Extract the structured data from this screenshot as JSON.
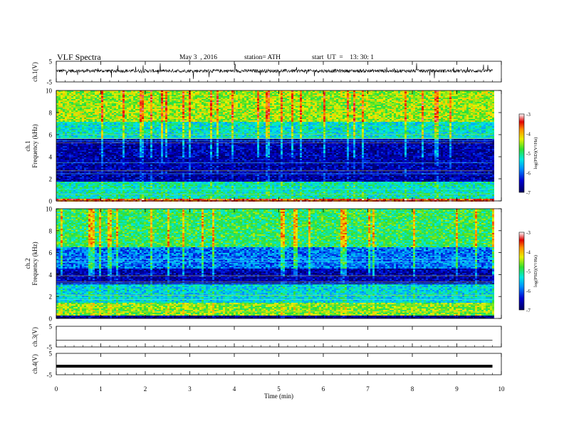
{
  "header": {
    "title": "VLF  Spectra",
    "date": "May 3  , 2016",
    "station": "station= ATH",
    "start": "start  UT  =    13: 30: 1"
  },
  "chart_data": [
    {
      "type": "line",
      "panel": "ch1-waveform",
      "ylabel": "ch.1(V)",
      "ylim": [
        -5,
        5
      ],
      "yticks": [
        "5",
        "-5"
      ],
      "xlim": [
        0,
        10
      ],
      "x_extent_min": 9.8,
      "description_level": "baseline near 0 V with dense noise ±1 V and occasional spikes to ±4.5 V"
    },
    {
      "type": "heatmap",
      "panel": "ch1-spectrogram",
      "ylabel": "ch.1\nFrequency  (kHz)",
      "ylim": [
        0,
        10
      ],
      "yticks": [
        "0",
        "2",
        "4",
        "6",
        "8",
        "10"
      ],
      "xlim": [
        0,
        10
      ],
      "x_extent_min": 9.8,
      "colorbar": {
        "label": "log(PSD)(V²/Hz)",
        "range": [
          -7,
          -3
        ],
        "ticks": [
          "-7",
          "-6",
          "-5",
          "-4",
          "-3"
        ]
      },
      "bands": [
        {
          "f": [
            0,
            0.3
          ],
          "level": -3.6
        },
        {
          "f": [
            0.3,
            1.8
          ],
          "level": -5.2
        },
        {
          "f": [
            1.8,
            5.7
          ],
          "level": -6.6
        },
        {
          "f": [
            5.7,
            7.2
          ],
          "level": -5.3
        },
        {
          "f": [
            7.2,
            10
          ],
          "level": -4.5
        }
      ]
    },
    {
      "type": "heatmap",
      "panel": "ch2-spectrogram",
      "ylabel": "ch.2\nFrequency  (kHz)",
      "ylim": [
        0,
        10
      ],
      "yticks": [
        "0",
        "2",
        "4",
        "6",
        "8",
        "10"
      ],
      "xlim": [
        0,
        10
      ],
      "x_extent_min": 9.8,
      "colorbar": {
        "label": "log(PSD)(V²/Hz)",
        "range": [
          -7,
          -3
        ],
        "ticks": [
          "-7",
          "-6",
          "-5",
          "-4",
          "-3"
        ]
      },
      "bands": [
        {
          "f": [
            0,
            0.3
          ],
          "level": -6.8
        },
        {
          "f": [
            0.3,
            1.5
          ],
          "level": -4.6
        },
        {
          "f": [
            1.5,
            3.2
          ],
          "level": -5.4
        },
        {
          "f": [
            3.2,
            4.6
          ],
          "level": -6.6
        },
        {
          "f": [
            4.6,
            6.5
          ],
          "level": -5.9
        },
        {
          "f": [
            6.5,
            10
          ],
          "level": -4.9
        }
      ]
    },
    {
      "type": "line",
      "panel": "ch3-waveform",
      "ylabel": "ch.3(V)",
      "ylim": [
        -5,
        5
      ],
      "yticks": [
        "5",
        "-5"
      ],
      "xlim": [
        0,
        10
      ],
      "x_extent_min": 9.8,
      "description_level": "flat near 0 V"
    },
    {
      "type": "line",
      "panel": "ch4-waveform",
      "ylabel": "ch.4(V)",
      "ylim": [
        -5,
        5
      ],
      "yticks": [
        "5",
        "-5"
      ],
      "xlim": [
        0,
        10
      ],
      "x_extent_min": 9.8,
      "xlabel": "Time  (min)",
      "xticks": [
        "0",
        "1",
        "2",
        "3",
        "4",
        "5",
        "6",
        "7",
        "8",
        "9",
        "10"
      ],
      "description_level": "thick flat trace near 0 V"
    }
  ]
}
